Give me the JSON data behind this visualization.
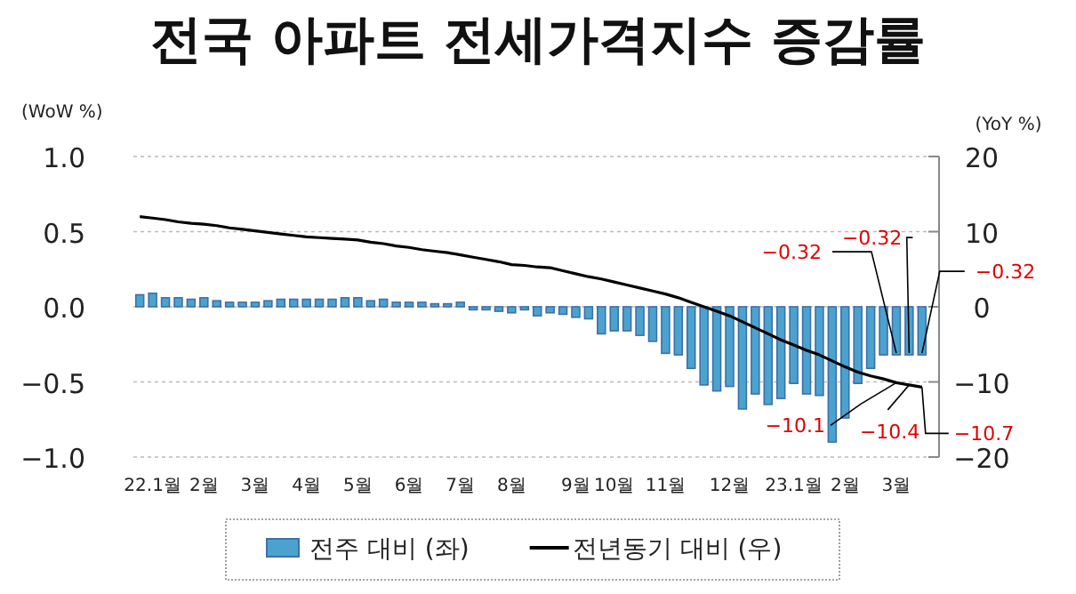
{
  "chart_data": {
    "type": "bar",
    "title": "전국 아파트 전세가격지수 증감률",
    "ylabel": "(WoW %)",
    "y2label": "(YoY %)",
    "categories": [
      null,
      "22.1월",
      null,
      null,
      null,
      "2월",
      null,
      null,
      null,
      "3월",
      null,
      null,
      null,
      "4월",
      null,
      null,
      null,
      "5월",
      null,
      null,
      null,
      "6월",
      null,
      null,
      null,
      "7월",
      null,
      null,
      null,
      "8월",
      null,
      null,
      null,
      null,
      "9월",
      null,
      null,
      "10월",
      null,
      null,
      null,
      "11월",
      null,
      null,
      null,
      null,
      "12월",
      null,
      null,
      null,
      null,
      "23.1월",
      null,
      null,
      null,
      "2월",
      null,
      null,
      null,
      "3월",
      null,
      null
    ],
    "series": [
      {
        "name": "전주 대비 (좌)",
        "color": "#4aa3cf",
        "values": [
          0.08,
          0.09,
          0.06,
          0.06,
          0.05,
          0.06,
          0.04,
          0.03,
          0.03,
          0.03,
          0.04,
          0.05,
          0.05,
          0.05,
          0.05,
          0.05,
          0.06,
          0.06,
          0.04,
          0.05,
          0.03,
          0.03,
          0.03,
          0.02,
          0.02,
          0.03,
          -0.02,
          -0.02,
          -0.03,
          -0.04,
          -0.02,
          -0.06,
          -0.04,
          -0.05,
          -0.07,
          -0.08,
          -0.18,
          -0.16,
          -0.16,
          -0.19,
          -0.23,
          -0.31,
          -0.32,
          -0.41,
          -0.52,
          -0.56,
          -0.53,
          -0.68,
          -0.58,
          -0.65,
          -0.61,
          -0.51,
          -0.58,
          -0.59,
          -0.9,
          -0.74,
          -0.51,
          -0.41,
          -0.32,
          -0.32,
          -0.32,
          -0.32
        ],
        "value_labels": [
          null,
          null,
          null,
          null,
          null,
          null,
          null,
          null,
          null,
          null,
          null,
          null,
          null,
          null,
          null,
          null,
          null,
          null,
          null,
          null,
          null,
          null,
          null,
          null,
          null,
          null,
          null,
          null,
          null,
          null,
          null,
          null,
          null,
          null,
          null,
          null,
          null,
          null,
          null,
          null,
          null,
          null,
          null,
          null,
          null,
          null,
          null,
          null,
          null,
          null,
          null,
          null,
          null,
          null,
          null,
          null,
          null,
          null,
          null,
          "−0.32",
          "−0.32",
          "−0.32"
        ]
      },
      {
        "name": "전년동기 대비 (우)",
        "type": "line",
        "axis": "y2",
        "color": "#000000",
        "values": [
          12.0,
          11.8,
          11.6,
          11.3,
          11.1,
          11.0,
          10.8,
          10.5,
          10.3,
          10.1,
          9.9,
          9.7,
          9.5,
          9.3,
          9.2,
          9.1,
          9.0,
          8.9,
          8.6,
          8.4,
          8.1,
          7.9,
          7.6,
          7.4,
          7.2,
          6.9,
          6.6,
          6.3,
          6.0,
          5.6,
          5.5,
          5.3,
          5.2,
          4.8,
          4.4,
          4.0,
          3.7,
          3.3,
          2.9,
          2.5,
          2.1,
          1.7,
          1.2,
          0.6,
          0.0,
          -0.6,
          -1.2,
          -2.0,
          -2.8,
          -3.6,
          -4.4,
          -5.1,
          -5.8,
          -6.4,
          -7.2,
          -8.0,
          -8.7,
          -9.2,
          -9.6,
          -10.1,
          -10.4,
          -10.7
        ],
        "value_labels": [
          null,
          null,
          null,
          null,
          null,
          null,
          null,
          null,
          null,
          null,
          null,
          null,
          null,
          null,
          null,
          null,
          null,
          null,
          null,
          null,
          null,
          null,
          null,
          null,
          null,
          null,
          null,
          null,
          null,
          null,
          null,
          null,
          null,
          null,
          null,
          null,
          null,
          null,
          null,
          null,
          null,
          null,
          null,
          null,
          null,
          null,
          null,
          null,
          null,
          null,
          null,
          null,
          null,
          null,
          null,
          null,
          null,
          null,
          null,
          "−10.1",
          "−10.4",
          "−10.7"
        ]
      }
    ],
    "ylim": [
      -1,
      1
    ],
    "yticks": [
      {
        "value": 1,
        "label": "1.0"
      },
      {
        "value": 0.5,
        "label": "0.5"
      },
      {
        "value": 0,
        "label": "0.0"
      },
      {
        "value": -0.5,
        "label": "−0.5"
      },
      {
        "value": -1,
        "label": "−1.0"
      }
    ],
    "y2lim": [
      -20,
      20
    ],
    "y2ticks": [
      20,
      10,
      0,
      {
        "value": -10,
        "label": "−10"
      },
      {
        "value": -20,
        "label": "−20"
      }
    ],
    "grid": "y",
    "legend": "bottom"
  }
}
